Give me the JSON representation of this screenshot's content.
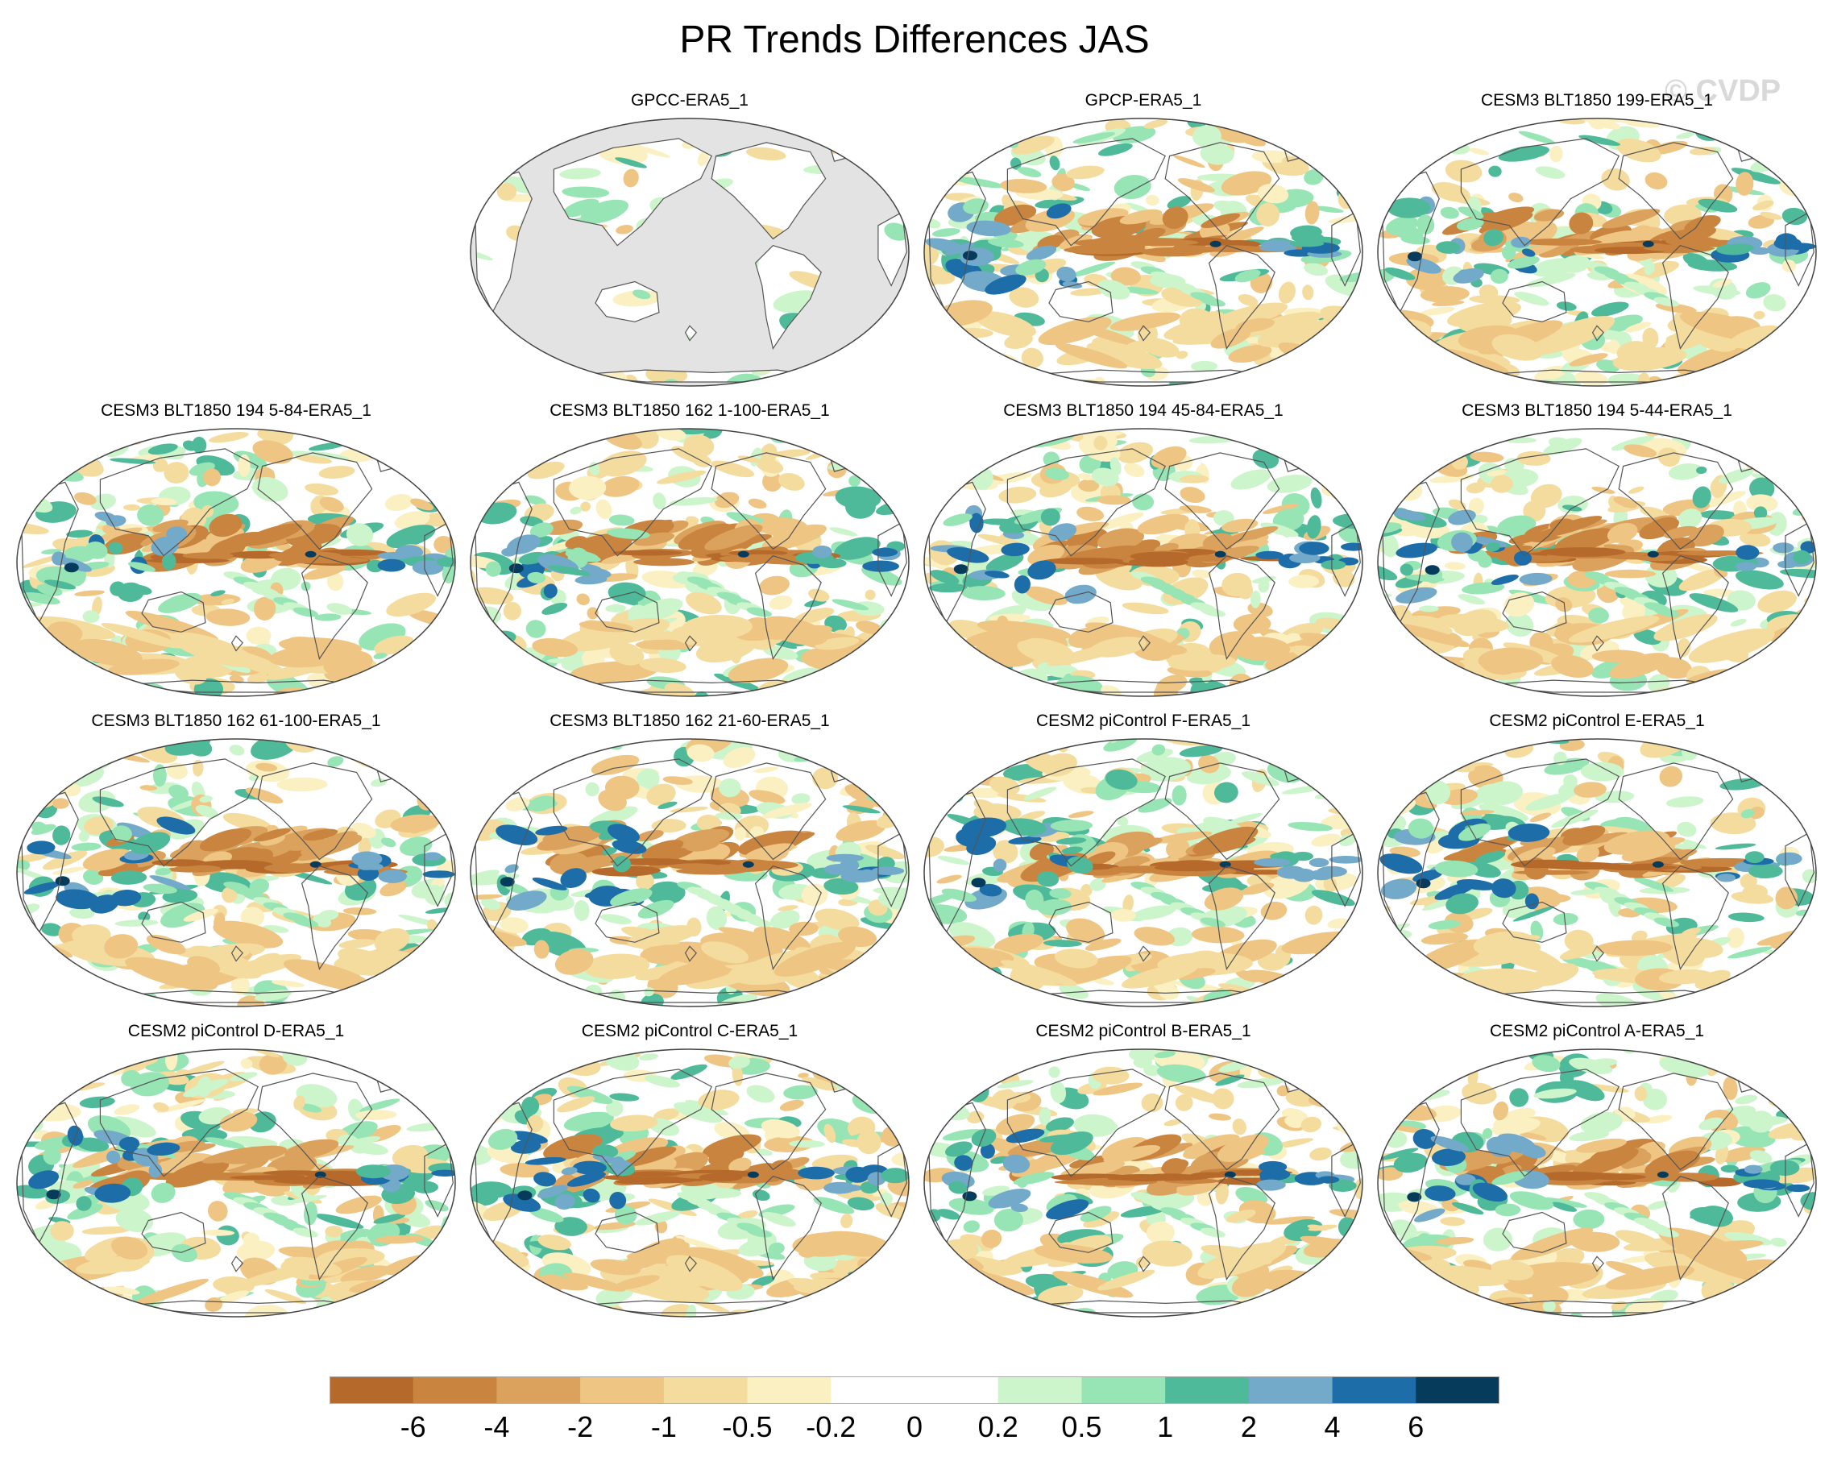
{
  "title": "PR Trends Differences JAS",
  "watermark": "© CVDP",
  "panels": [
    {
      "title": "GPCC-ERA5_1",
      "land_only": true
    },
    {
      "title": "GPCP-ERA5_1",
      "land_only": false
    },
    {
      "title": "CESM3 BLT1850 199-ERA5_1",
      "land_only": false
    },
    {
      "title": "CESM3 BLT1850 194 5-84-ERA5_1",
      "land_only": false
    },
    {
      "title": "CESM3 BLT1850 162 1-100-ERA5_1",
      "land_only": false
    },
    {
      "title": "CESM3 BLT1850 194 45-84-ERA5_1",
      "land_only": false
    },
    {
      "title": "CESM3 BLT1850 194 5-44-ERA5_1",
      "land_only": false
    },
    {
      "title": "CESM3 BLT1850 162 61-100-ERA5_1",
      "land_only": false
    },
    {
      "title": "CESM3 BLT1850 162 21-60-ERA5_1",
      "land_only": false
    },
    {
      "title": "CESM2 piControl F-ERA5_1",
      "land_only": false
    },
    {
      "title": "CESM2 piControl E-ERA5_1",
      "land_only": false
    },
    {
      "title": "CESM2 piControl D-ERA5_1",
      "land_only": false
    },
    {
      "title": "CESM2 piControl C-ERA5_1",
      "land_only": false
    },
    {
      "title": "CESM2 piControl B-ERA5_1",
      "land_only": false
    },
    {
      "title": "CESM2 piControl A-ERA5_1",
      "land_only": false
    }
  ],
  "colorbar": {
    "labels": [
      "-6",
      "-4",
      "-2",
      "-1",
      "-0.5",
      "-0.2",
      "0",
      "0.2",
      "0.5",
      "1",
      "2",
      "4",
      "6"
    ],
    "colors": [
      "#b5692a",
      "#c98540",
      "#dba25e",
      "#efc583",
      "#f4dc9e",
      "#fbf0c2",
      "#ffffff",
      "#ffffff",
      "#cdf5cc",
      "#97e5b4",
      "#4fba99",
      "#73a9c9",
      "#1c6da8",
      "#073b5c"
    ]
  },
  "colors": {
    "land_mask": "#e3e3e3",
    "coastline": "#555555",
    "map_border": "#444444"
  }
}
